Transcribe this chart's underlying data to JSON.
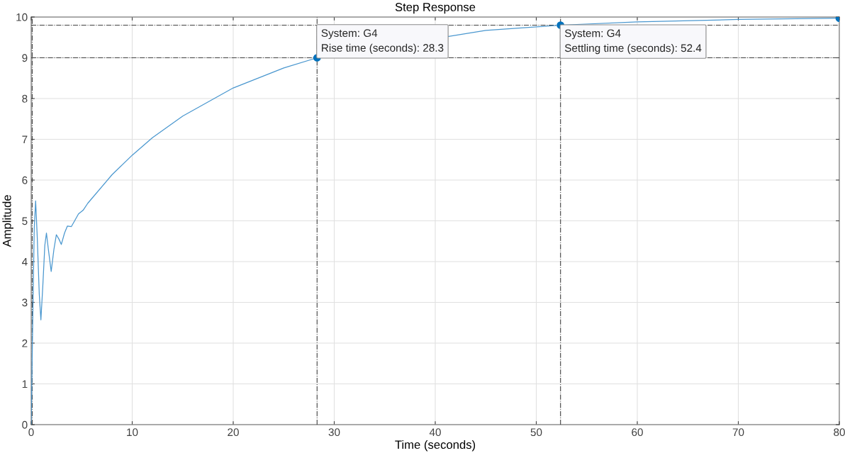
{
  "chart_data": {
    "type": "line",
    "title": "Step Response",
    "xlabel": "Time (seconds)",
    "ylabel": "Amplitude",
    "xlim": [
      0,
      80
    ],
    "ylim": [
      0,
      10
    ],
    "xticks": [
      0,
      10,
      20,
      30,
      40,
      50,
      60,
      70,
      80
    ],
    "yticks": [
      0,
      1,
      2,
      3,
      4,
      5,
      6,
      7,
      8,
      9,
      10
    ],
    "grid": true,
    "series": [
      {
        "color": "#4a97cf",
        "x": [
          0,
          0.15,
          0.3,
          0.44,
          0.6,
          0.8,
          0.96,
          1.15,
          1.35,
          1.51,
          1.7,
          1.98,
          2.25,
          2.49,
          2.75,
          2.98,
          3.3,
          3.58,
          3.98,
          4.3,
          4.68,
          5.14,
          5.6,
          8,
          10,
          12,
          15,
          20,
          25,
          28.3,
          45,
          52.4,
          60,
          70,
          80
        ],
        "values": [
          0,
          2.5,
          4.8,
          5.49,
          4.6,
          3.2,
          2.57,
          3.4,
          4.4,
          4.7,
          4.3,
          3.76,
          4.3,
          4.66,
          4.55,
          4.42,
          4.7,
          4.87,
          4.86,
          5.0,
          5.17,
          5.26,
          5.43,
          6.13,
          6.61,
          7.04,
          7.57,
          8.26,
          8.75,
          9.0,
          9.67,
          9.8,
          9.88,
          9.94,
          9.97
        ]
      },
      {
        "type": "scatter",
        "color": "#0072bd",
        "marker": "circle",
        "x": [
          28.3,
          52.4,
          80
        ],
        "values": [
          9.0,
          9.8,
          9.97
        ]
      }
    ],
    "ref_lines": [
      {
        "axis": "y",
        "value": 9,
        "color": "#404040",
        "line_style": "dashed"
      },
      {
        "axis": "y",
        "value": 9.8,
        "color": "#404040",
        "line_style": "dashed"
      },
      {
        "axis": "x",
        "value": 0.1,
        "color": "#404040",
        "line_style": "dashed"
      },
      {
        "axis": "x",
        "value": 28.3,
        "color": "#404040",
        "line_style": "dashed"
      },
      {
        "axis": "x",
        "value": 52.4,
        "color": "#404040",
        "line_style": "dashed"
      }
    ],
    "annotations": [
      {
        "text": "System: G4\nRise time (seconds): 28.3",
        "x": 28.3,
        "y": 9.0
      },
      {
        "text": "System: G4\nSettling time (seconds): 52.4",
        "x": 52.4,
        "y": 9.8
      }
    ]
  }
}
